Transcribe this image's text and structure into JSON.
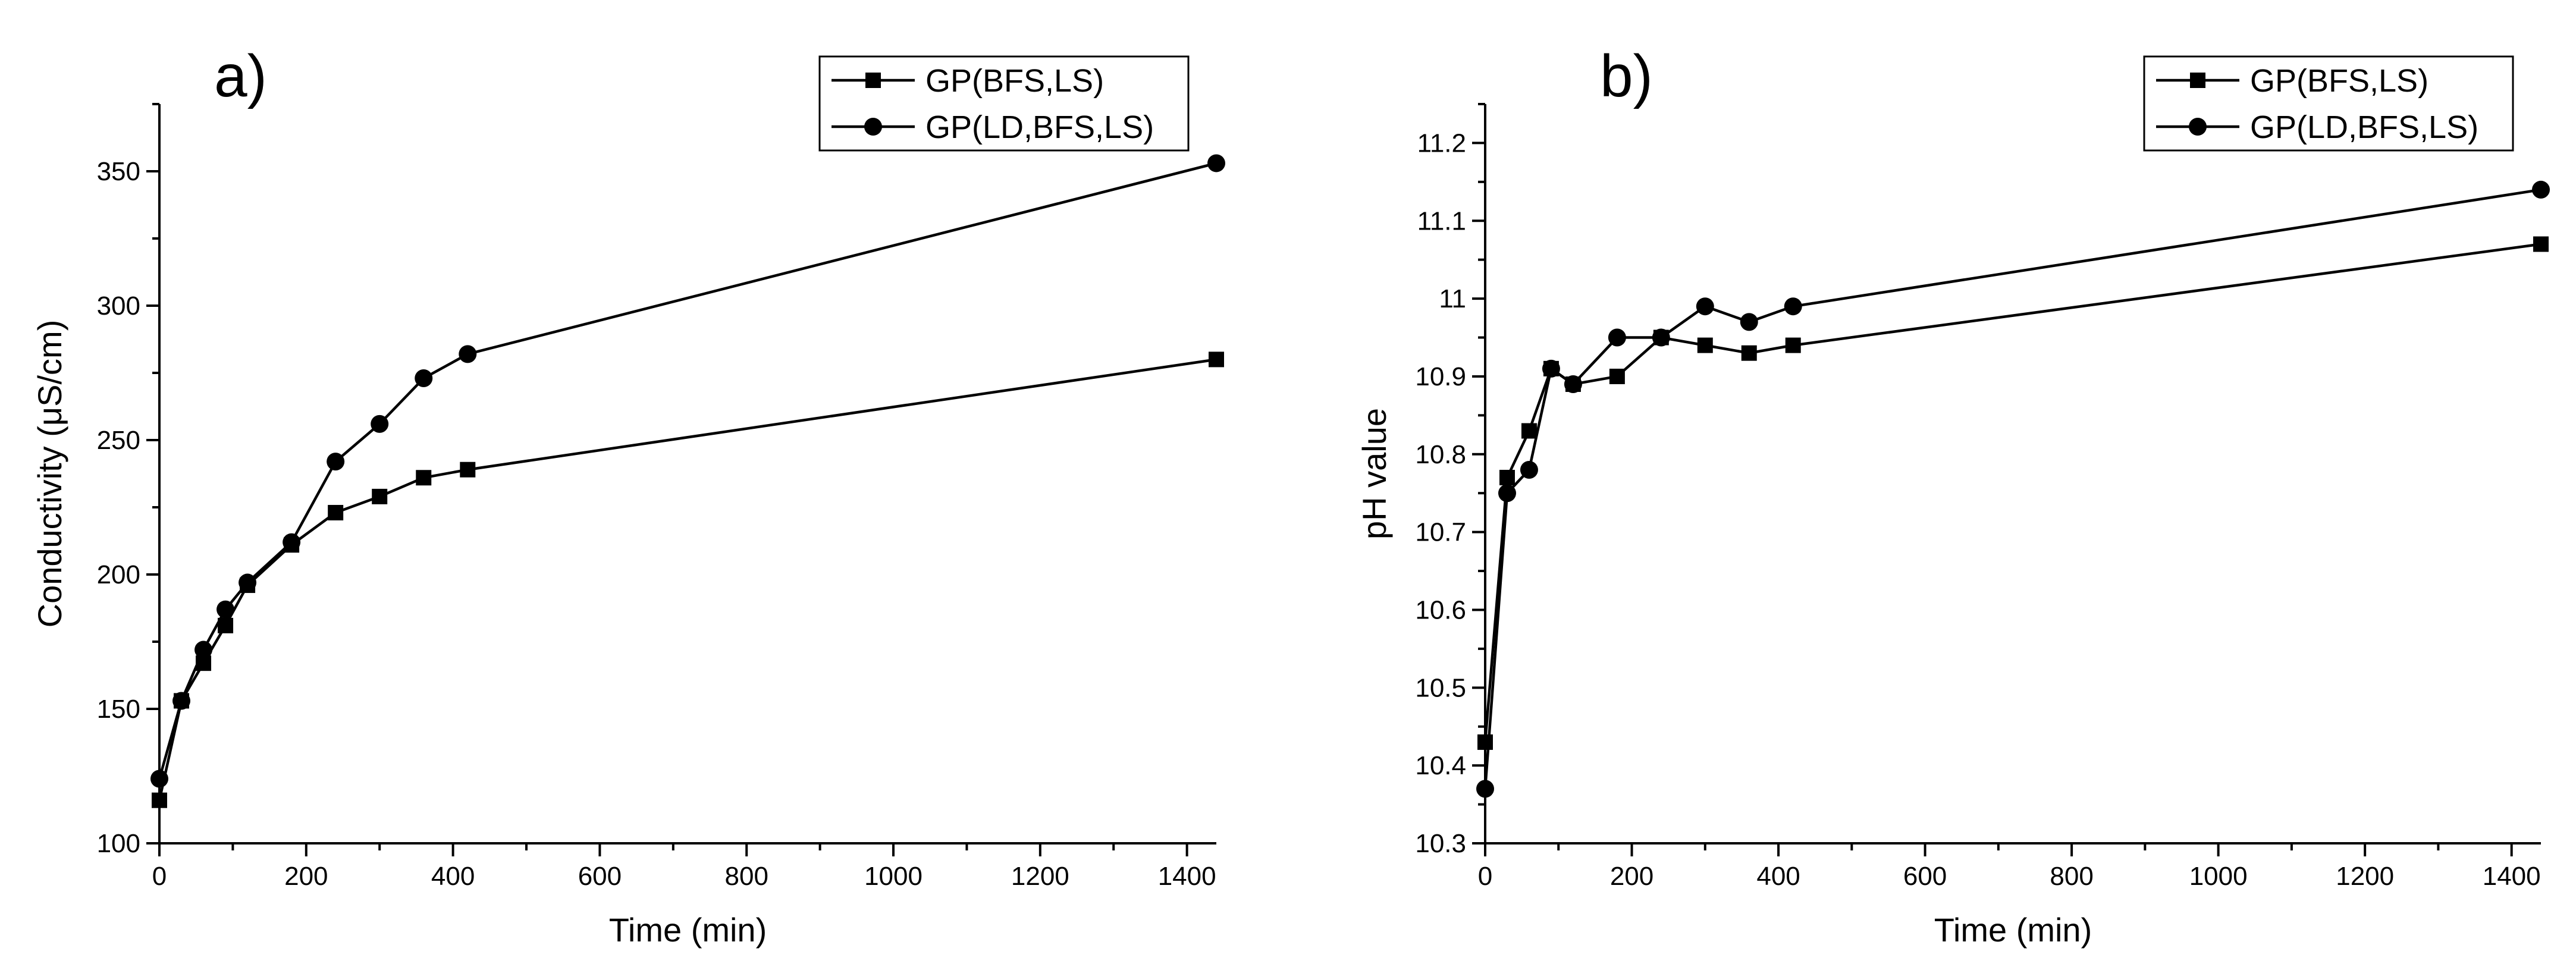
{
  "chart_data": [
    {
      "type": "line",
      "panel_label": "a)",
      "title": "",
      "xlabel": "Time (min)",
      "ylabel": "Conductivity (μS/cm)",
      "xlim": [
        0,
        1440
      ],
      "ylim": [
        100,
        375
      ],
      "xticks": [
        0,
        200,
        400,
        600,
        800,
        1000,
        1200,
        1400
      ],
      "yticks": [
        100,
        150,
        200,
        250,
        300,
        350
      ],
      "legend_position": "top-right",
      "series": [
        {
          "name": "GP(BFS,LS)",
          "marker": "square",
          "x": [
            0,
            30,
            60,
            90,
            120,
            180,
            240,
            300,
            360,
            420,
            1440
          ],
          "y": [
            116,
            153,
            167,
            181,
            196,
            211,
            223,
            229,
            236,
            239,
            280
          ]
        },
        {
          "name": "GP(LD,BFS,LS)",
          "marker": "circle",
          "x": [
            0,
            30,
            60,
            90,
            120,
            180,
            240,
            300,
            360,
            420,
            1440
          ],
          "y": [
            124,
            153,
            172,
            187,
            197,
            212,
            242,
            256,
            273,
            282,
            353
          ]
        }
      ]
    },
    {
      "type": "line",
      "panel_label": "b)",
      "title": "",
      "xlabel": "Time (min)",
      "ylabel": "pH value",
      "xlim": [
        0,
        1440
      ],
      "ylim": [
        10.3,
        11.25
      ],
      "xticks": [
        0,
        200,
        400,
        600,
        800,
        1000,
        1200,
        1400
      ],
      "yticks": [
        10.3,
        10.4,
        10.5,
        10.6,
        10.7,
        10.8,
        10.9,
        11,
        11.1,
        11.2
      ],
      "ytick_labels": [
        "10.3",
        "10.4",
        "10.5",
        "10.6",
        "10.7",
        "10.8",
        "10.9",
        "11",
        "11.1",
        "11.2"
      ],
      "legend_position": "top-right",
      "series": [
        {
          "name": "GP(BFS,LS)",
          "marker": "square",
          "x": [
            0,
            30,
            60,
            90,
            120,
            180,
            240,
            300,
            360,
            420,
            1440
          ],
          "y": [
            10.43,
            10.77,
            10.83,
            10.91,
            10.89,
            10.9,
            10.95,
            10.94,
            10.93,
            10.94,
            11.07
          ]
        },
        {
          "name": "GP(LD,BFS,LS)",
          "marker": "circle",
          "x": [
            0,
            30,
            60,
            90,
            120,
            180,
            240,
            300,
            360,
            420,
            1440
          ],
          "y": [
            10.37,
            10.75,
            10.78,
            10.91,
            10.89,
            10.95,
            10.95,
            10.99,
            10.97,
            10.99,
            11.14
          ]
        }
      ]
    }
  ]
}
